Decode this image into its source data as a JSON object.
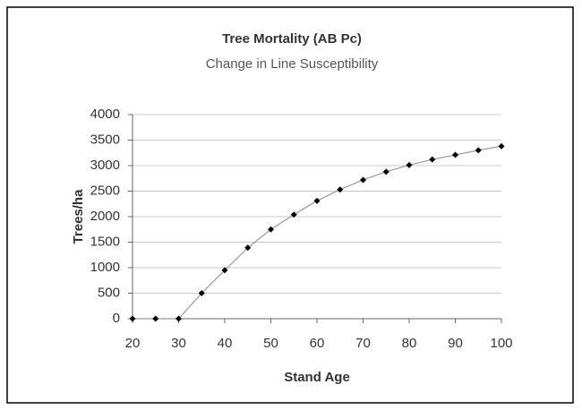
{
  "chart_data": {
    "type": "line",
    "title": "Tree Mortality (AB Pc)",
    "subtitle": "Change in Line Susceptibility",
    "x_label": "Stand Age",
    "y_label": "Trees/ha",
    "x": [
      20,
      25,
      30,
      35,
      40,
      45,
      50,
      55,
      60,
      65,
      70,
      75,
      80,
      85,
      90,
      95,
      100
    ],
    "series": [
      {
        "name": "Tree Mortality",
        "color": "#000000",
        "line_color": "#999999",
        "values": [
          0,
          0,
          0,
          500,
          950,
          1390,
          1750,
          2040,
          2310,
          2530,
          2720,
          2880,
          3010,
          3120,
          3210,
          3300,
          3380
        ]
      }
    ],
    "xlim": [
      20,
      100
    ],
    "xticks": [
      20,
      30,
      40,
      50,
      60,
      70,
      80,
      90,
      100
    ],
    "ylim": [
      0,
      4000
    ],
    "yticks": [
      0,
      500,
      1000,
      1500,
      2000,
      2500,
      3000,
      3500,
      4000
    ],
    "grid": true
  }
}
